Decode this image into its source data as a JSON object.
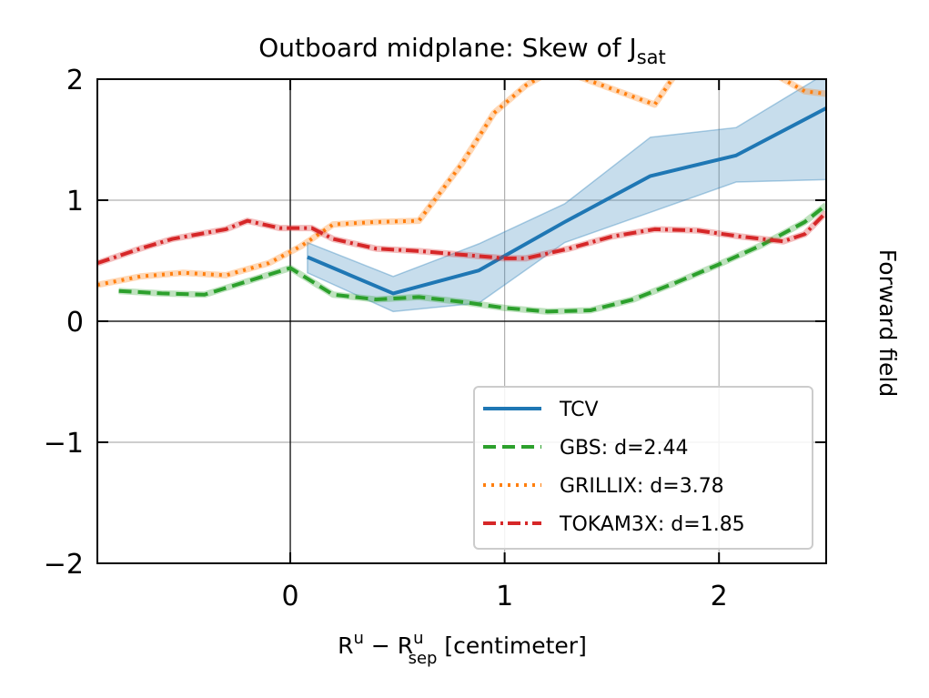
{
  "chart_data": {
    "type": "line",
    "title": {
      "main": "Outboard midplane: Skew of J",
      "sub": "sat"
    },
    "xlabel": {
      "r1": "R",
      "s1": "u",
      "op": " − ",
      "r2": "R",
      "s2a": "u",
      "s2b": "sep",
      "tail": " [centimeter]"
    },
    "ylabel_right": "Forward field",
    "xlim": [
      -0.9,
      2.5
    ],
    "ylim": [
      -2,
      2
    ],
    "xticks": [
      {
        "v": 0,
        "label": "0"
      },
      {
        "v": 1,
        "label": "1"
      },
      {
        "v": 2,
        "label": "2"
      }
    ],
    "yticks": [
      {
        "v": -2,
        "label": "−2"
      },
      {
        "v": -1,
        "label": "−1"
      },
      {
        "v": 0,
        "label": "0"
      },
      {
        "v": 1,
        "label": "1"
      },
      {
        "v": 2,
        "label": "2"
      }
    ],
    "grid": true,
    "legend_position": "lower-right",
    "series": [
      {
        "name": "TCV",
        "color": "#1f77b4",
        "dash": "solid",
        "x": [
          0.08,
          0.48,
          0.88,
          1.28,
          1.68,
          2.08,
          2.5
        ],
        "y": [
          0.53,
          0.23,
          0.42,
          0.82,
          1.2,
          1.37,
          1.76
        ],
        "band_low": [
          0.4,
          0.08,
          0.15,
          0.65,
          0.9,
          1.15,
          1.17
        ],
        "band_high": [
          0.65,
          0.37,
          0.64,
          0.97,
          1.52,
          1.6,
          2.05
        ]
      },
      {
        "name": "GBS: d=2.44",
        "color": "#2ca02c",
        "dash": "dashed",
        "x": [
          -0.8,
          -0.6,
          -0.4,
          -0.2,
          0.0,
          0.2,
          0.4,
          0.6,
          0.8,
          1.0,
          1.2,
          1.4,
          1.6,
          1.8,
          2.0,
          2.2,
          2.4,
          2.5
        ],
        "y": [
          0.25,
          0.23,
          0.22,
          0.33,
          0.44,
          0.22,
          0.18,
          0.2,
          0.16,
          0.11,
          0.08,
          0.09,
          0.18,
          0.32,
          0.47,
          0.63,
          0.82,
          0.96
        ]
      },
      {
        "name": "GRILLIX: d=3.78",
        "color": "#ff7f0e",
        "dash": "dotted",
        "x": [
          -0.9,
          -0.7,
          -0.5,
          -0.3,
          -0.1,
          0.05,
          0.2,
          0.4,
          0.6,
          0.8,
          0.95,
          1.1,
          1.2,
          1.3,
          1.5,
          1.7,
          1.8,
          2.0,
          2.2,
          2.3,
          2.4,
          2.5
        ],
        "y": [
          0.3,
          0.37,
          0.4,
          0.38,
          0.48,
          0.62,
          0.8,
          0.82,
          0.83,
          1.3,
          1.72,
          1.95,
          2.05,
          2.05,
          1.92,
          1.79,
          2.05,
          2.15,
          2.1,
          2.0,
          1.9,
          1.88
        ]
      },
      {
        "name": "TOKAM3X: d=1.85",
        "color": "#d62728",
        "dash": "dashdot",
        "x": [
          -0.9,
          -0.7,
          -0.55,
          -0.3,
          -0.2,
          -0.05,
          0.1,
          0.2,
          0.4,
          0.6,
          0.8,
          1.0,
          1.1,
          1.3,
          1.5,
          1.7,
          1.9,
          2.1,
          2.3,
          2.4,
          2.5
        ],
        "y": [
          0.48,
          0.6,
          0.68,
          0.76,
          0.83,
          0.77,
          0.77,
          0.68,
          0.6,
          0.58,
          0.55,
          0.52,
          0.52,
          0.6,
          0.7,
          0.76,
          0.75,
          0.7,
          0.66,
          0.72,
          0.9
        ]
      }
    ]
  }
}
